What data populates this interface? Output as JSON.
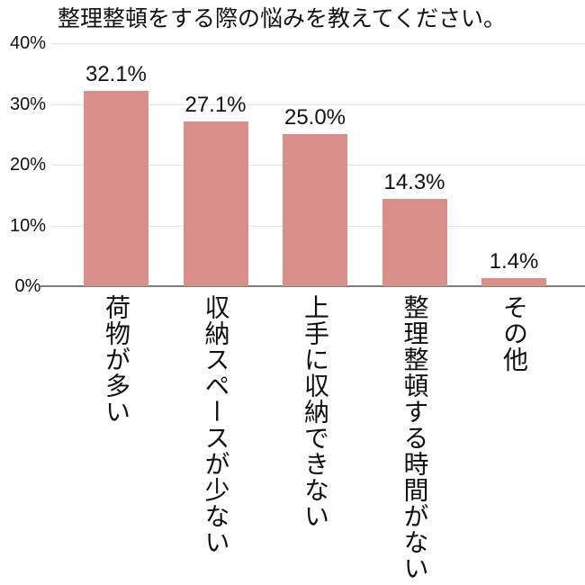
{
  "chart_data": {
    "type": "bar",
    "title": "整理整頓をする際の悩みを教えてください。",
    "categories": [
      "荷物が多い",
      "収納スペースが少ない",
      "上手に収納できない",
      "整理整頓する時間がない",
      "その他"
    ],
    "values": [
      32.1,
      27.1,
      25.0,
      14.3,
      1.4
    ],
    "value_labels": [
      "32.1%",
      "27.1%",
      "25.0%",
      "14.3%",
      "1.4%"
    ],
    "y_ticks": [
      0,
      10,
      20,
      30,
      40
    ],
    "y_tick_labels": [
      "0%",
      "10%",
      "20%",
      "30%",
      "40%"
    ],
    "ylim": [
      0,
      40
    ],
    "xlabel": "",
    "ylabel": "",
    "legend": "none",
    "grid": "horizontal",
    "bar_color": "#d9908b"
  }
}
